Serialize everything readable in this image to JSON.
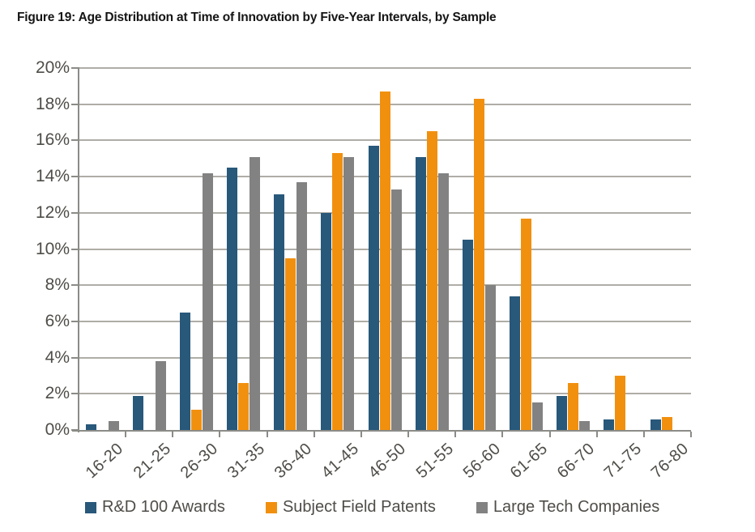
{
  "figure": {
    "title": "Figure 19: Age Distribution at Time of Innovation by Five-Year Intervals, by Sample"
  },
  "chart_data": {
    "type": "bar",
    "title": "Figure 19: Age Distribution at Time of Innovation by Five-Year Intervals, by Sample",
    "categories": [
      "16-20",
      "21-25",
      "26-30",
      "31-35",
      "36-40",
      "41-45",
      "46-50",
      "51-55",
      "56-60",
      "61-65",
      "66-70",
      "71-75",
      "76-80"
    ],
    "series": [
      {
        "name": "R&D 100 Awards",
        "color": "#28587a",
        "values": [
          0.3,
          1.9,
          6.5,
          14.5,
          13.0,
          12.0,
          15.7,
          15.1,
          10.5,
          7.4,
          1.9,
          0.6,
          0.6
        ]
      },
      {
        "name": "Subject Field Patents",
        "color": "#f1900f",
        "values": [
          0,
          0,
          1.1,
          2.6,
          9.5,
          15.3,
          18.7,
          16.5,
          18.3,
          11.7,
          2.6,
          3.0,
          0.7
        ]
      },
      {
        "name": "Large Tech Companies",
        "color": "#828282",
        "values": [
          0.5,
          3.8,
          14.2,
          15.1,
          13.7,
          15.1,
          13.3,
          14.2,
          8.0,
          1.5,
          0.5,
          0,
          0
        ]
      }
    ],
    "xlabel": "",
    "ylabel": "",
    "ylim": [
      0,
      20
    ],
    "ytick_step": 2,
    "ytick_labels": [
      "0%",
      "2%",
      "4%",
      "6%",
      "8%",
      "10%",
      "12%",
      "14%",
      "16%",
      "18%",
      "20%"
    ],
    "grid": true,
    "legend_position": "bottom"
  },
  "colors": {
    "gridline": "#afada6",
    "axis": "#8b8b87",
    "label_text": "#4f4d48",
    "title_text": "#151515",
    "background": "#ffffff"
  }
}
